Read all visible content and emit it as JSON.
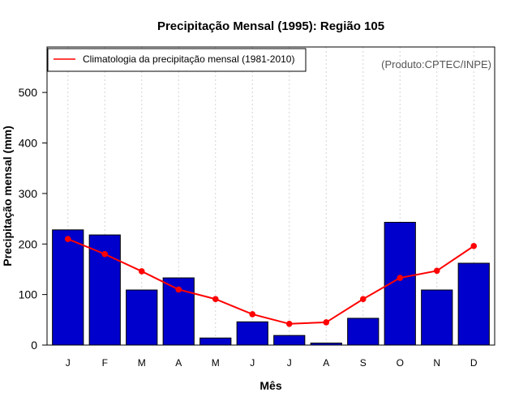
{
  "chart_data": {
    "type": "bar",
    "title": "Precipitação Mensal (1995): Região 105",
    "xlabel": "Mês",
    "ylabel": "Precipitação mensal (mm)",
    "ylim": [
      0,
      590
    ],
    "yticks": [
      0,
      100,
      200,
      300,
      400,
      500
    ],
    "categories": [
      "J",
      "F",
      "M",
      "A",
      "M",
      "J",
      "J",
      "A",
      "S",
      "O",
      "N",
      "D"
    ],
    "series": [
      {
        "name": "Precipitação mensal (1995)",
        "kind": "bar",
        "color": "#0000cc",
        "values": [
          228,
          218,
          109,
          133,
          14,
          46,
          19,
          4,
          53,
          243,
          109,
          162
        ]
      },
      {
        "name": "Climatologia da precipitação mensal (1981-2010)",
        "kind": "line",
        "color": "#ff0000",
        "values": [
          210,
          180,
          146,
          110,
          91,
          61,
          42,
          45,
          91,
          133,
          147,
          196
        ]
      }
    ],
    "legend": {
      "position": "top-left",
      "entries": [
        "Climatologia da precipitação mensal (1981-2010)"
      ]
    },
    "annotation": "(Produto:CPTEC/INPE)",
    "grid": "vertical dotted"
  }
}
